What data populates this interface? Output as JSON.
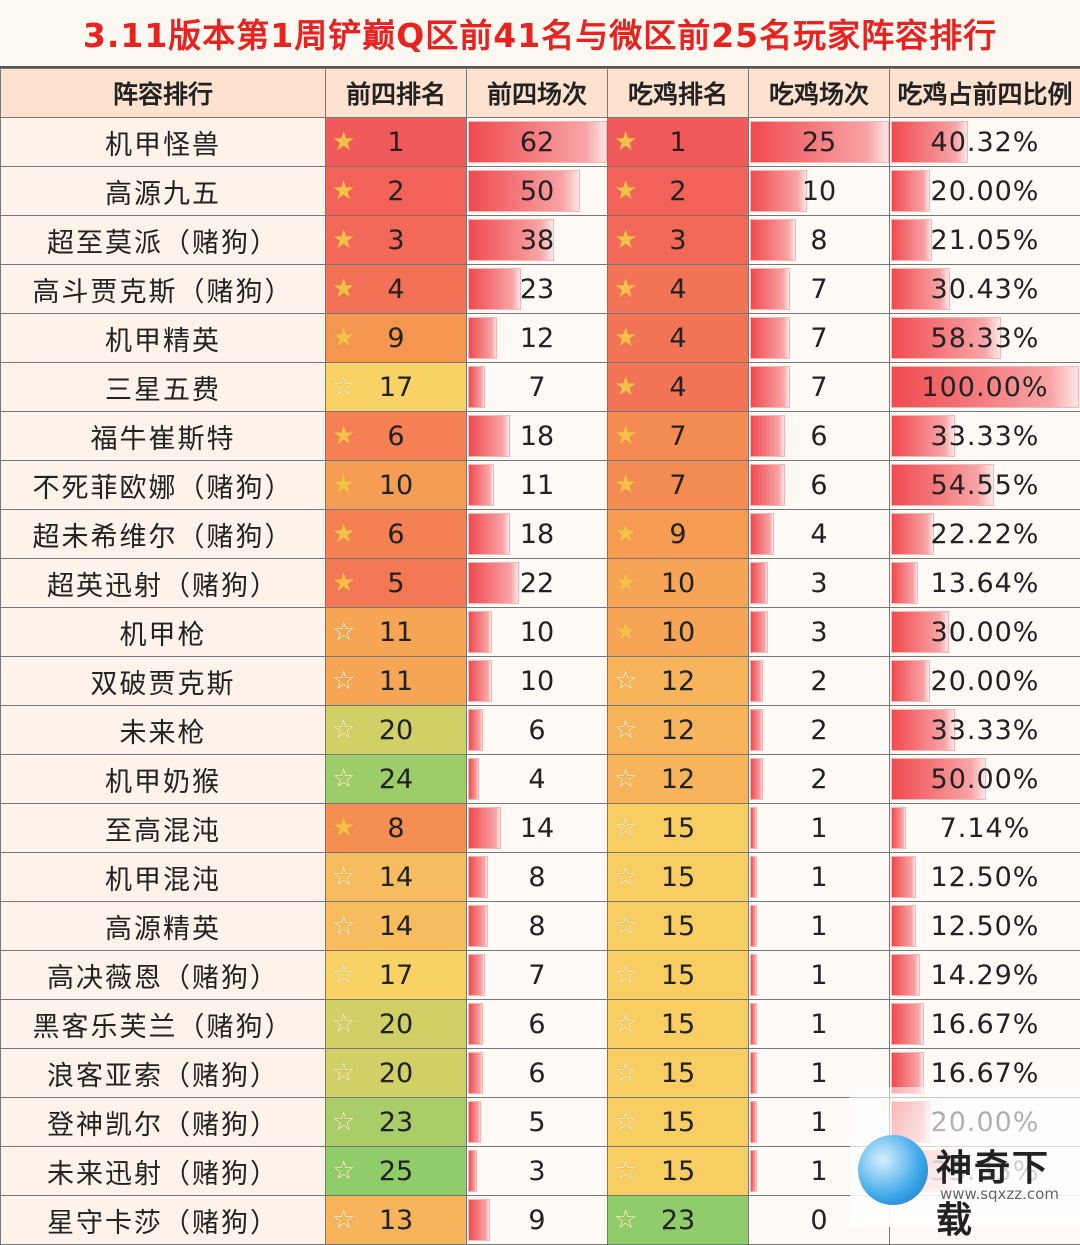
{
  "title": "3.11版本第1周铲巅Q区前41名与微区前25名玩家阵容排行",
  "headers": [
    "阵容排行",
    "前四排名",
    "前四场次",
    "吃鸡排名",
    "吃鸡场次",
    "吃鸡占前四比例"
  ],
  "rows": [
    {
      "name": "机甲怪兽",
      "top4_rank": "1",
      "top4_games": "62",
      "win_rank": "1",
      "win_games": "25",
      "ratio": "40.32%"
    },
    {
      "name": "高源九五",
      "top4_rank": "2",
      "top4_games": "50",
      "win_rank": "2",
      "win_games": "10",
      "ratio": "20.00%"
    },
    {
      "name": "超至莫派（赌狗）",
      "top4_rank": "3",
      "top4_games": "38",
      "win_rank": "3",
      "win_games": "8",
      "ratio": "21.05%"
    },
    {
      "name": "高斗贾克斯（赌狗）",
      "top4_rank": "4",
      "top4_games": "23",
      "win_rank": "4",
      "win_games": "7",
      "ratio": "30.43%"
    },
    {
      "name": "机甲精英",
      "top4_rank": "9",
      "top4_games": "12",
      "win_rank": "4",
      "win_games": "7",
      "ratio": "58.33%"
    },
    {
      "name": "三星五费",
      "top4_rank": "17",
      "top4_games": "7",
      "win_rank": "4",
      "win_games": "7",
      "ratio": "100.00%"
    },
    {
      "name": "福牛崔斯特",
      "top4_rank": "6",
      "top4_games": "18",
      "win_rank": "7",
      "win_games": "6",
      "ratio": "33.33%"
    },
    {
      "name": "不死菲欧娜（赌狗）",
      "top4_rank": "10",
      "top4_games": "11",
      "win_rank": "7",
      "win_games": "6",
      "ratio": "54.55%"
    },
    {
      "name": "超未希维尔（赌狗）",
      "top4_rank": "6",
      "top4_games": "18",
      "win_rank": "9",
      "win_games": "4",
      "ratio": "22.22%"
    },
    {
      "name": "超英迅射（赌狗）",
      "top4_rank": "5",
      "top4_games": "22",
      "win_rank": "10",
      "win_games": "3",
      "ratio": "13.64%"
    },
    {
      "name": "机甲枪",
      "top4_rank": "11",
      "top4_games": "10",
      "win_rank": "10",
      "win_games": "3",
      "ratio": "30.00%"
    },
    {
      "name": "双破贾克斯",
      "top4_rank": "11",
      "top4_games": "10",
      "win_rank": "12",
      "win_games": "2",
      "ratio": "20.00%"
    },
    {
      "name": "未来枪",
      "top4_rank": "20",
      "top4_games": "6",
      "win_rank": "12",
      "win_games": "2",
      "ratio": "33.33%"
    },
    {
      "name": "机甲奶猴",
      "top4_rank": "24",
      "top4_games": "4",
      "win_rank": "12",
      "win_games": "2",
      "ratio": "50.00%"
    },
    {
      "name": "至高混沌",
      "top4_rank": "8",
      "top4_games": "14",
      "win_rank": "15",
      "win_games": "1",
      "ratio": "7.14%"
    },
    {
      "name": "机甲混沌",
      "top4_rank": "14",
      "top4_games": "8",
      "win_rank": "15",
      "win_games": "1",
      "ratio": "12.50%"
    },
    {
      "name": "高源精英",
      "top4_rank": "14",
      "top4_games": "8",
      "win_rank": "15",
      "win_games": "1",
      "ratio": "12.50%"
    },
    {
      "name": "高决薇恩（赌狗）",
      "top4_rank": "17",
      "top4_games": "7",
      "win_rank": "15",
      "win_games": "1",
      "ratio": "14.29%"
    },
    {
      "name": "黑客乐芙兰（赌狗）",
      "top4_rank": "20",
      "top4_games": "6",
      "win_rank": "15",
      "win_games": "1",
      "ratio": "16.67%"
    },
    {
      "name": "浪客亚索（赌狗）",
      "top4_rank": "20",
      "top4_games": "6",
      "win_rank": "15",
      "win_games": "1",
      "ratio": "16.67%"
    },
    {
      "name": "登神凯尔（赌狗）",
      "top4_rank": "23",
      "top4_games": "5",
      "win_rank": "15",
      "win_games": "1",
      "ratio": "20.00%"
    },
    {
      "name": "未来迅射（赌狗）",
      "top4_rank": "25",
      "top4_games": "3",
      "win_rank": "15",
      "win_games": "1",
      "ratio": "33.33%"
    },
    {
      "name": "星守卡莎（赌狗）",
      "top4_rank": "13",
      "top4_games": "9",
      "win_rank": "23",
      "win_games": "0",
      "ratio": ""
    }
  ],
  "watermark": {
    "text": "神奇下载",
    "url": "www.sqxzz.com"
  },
  "colors": {
    "title": "#e8231f",
    "header_bg": "#fde3cf",
    "bar": "#f04a4f",
    "rank_best": "#f15a5a",
    "rank_mid": "#f7c45e",
    "rank_worst": "#8fcc6a"
  }
}
